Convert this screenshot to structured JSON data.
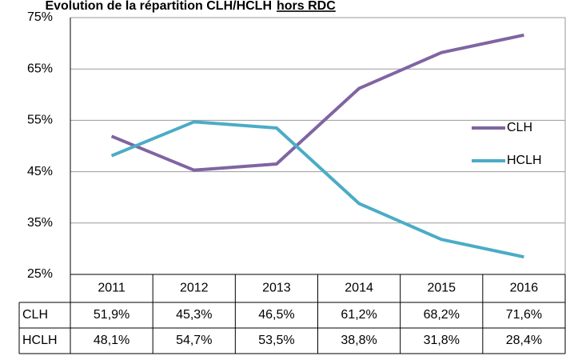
{
  "chart_data": {
    "type": "line",
    "title": "Evolution de la répartition CLH/HCLH",
    "title_underlined": "hors RDC",
    "categories": [
      "2011",
      "2012",
      "2013",
      "2014",
      "2015",
      "2016"
    ],
    "series": [
      {
        "name": "CLH",
        "color": "#8064a2",
        "values": [
          51.9,
          45.3,
          46.5,
          61.2,
          68.2,
          71.6
        ],
        "value_labels": [
          "51,9%",
          "45,3%",
          "46,5%",
          "61,2%",
          "68,2%",
          "71,6%"
        ]
      },
      {
        "name": "HCLH",
        "color": "#4bacc6",
        "values": [
          48.1,
          54.7,
          53.5,
          38.8,
          31.8,
          28.4
        ],
        "value_labels": [
          "48,1%",
          "54,7%",
          "53,5%",
          "38,8%",
          "31,8%",
          "28,4%"
        ]
      }
    ],
    "ylim": [
      25,
      75
    ],
    "yticks": [
      {
        "value": 25,
        "label": "25%"
      },
      {
        "value": 35,
        "label": "35%"
      },
      {
        "value": 45,
        "label": "45%"
      },
      {
        "value": 55,
        "label": "55%"
      },
      {
        "value": 65,
        "label": "65%"
      },
      {
        "value": 75,
        "label": "75%"
      }
    ],
    "grid": true,
    "legend": "right"
  }
}
